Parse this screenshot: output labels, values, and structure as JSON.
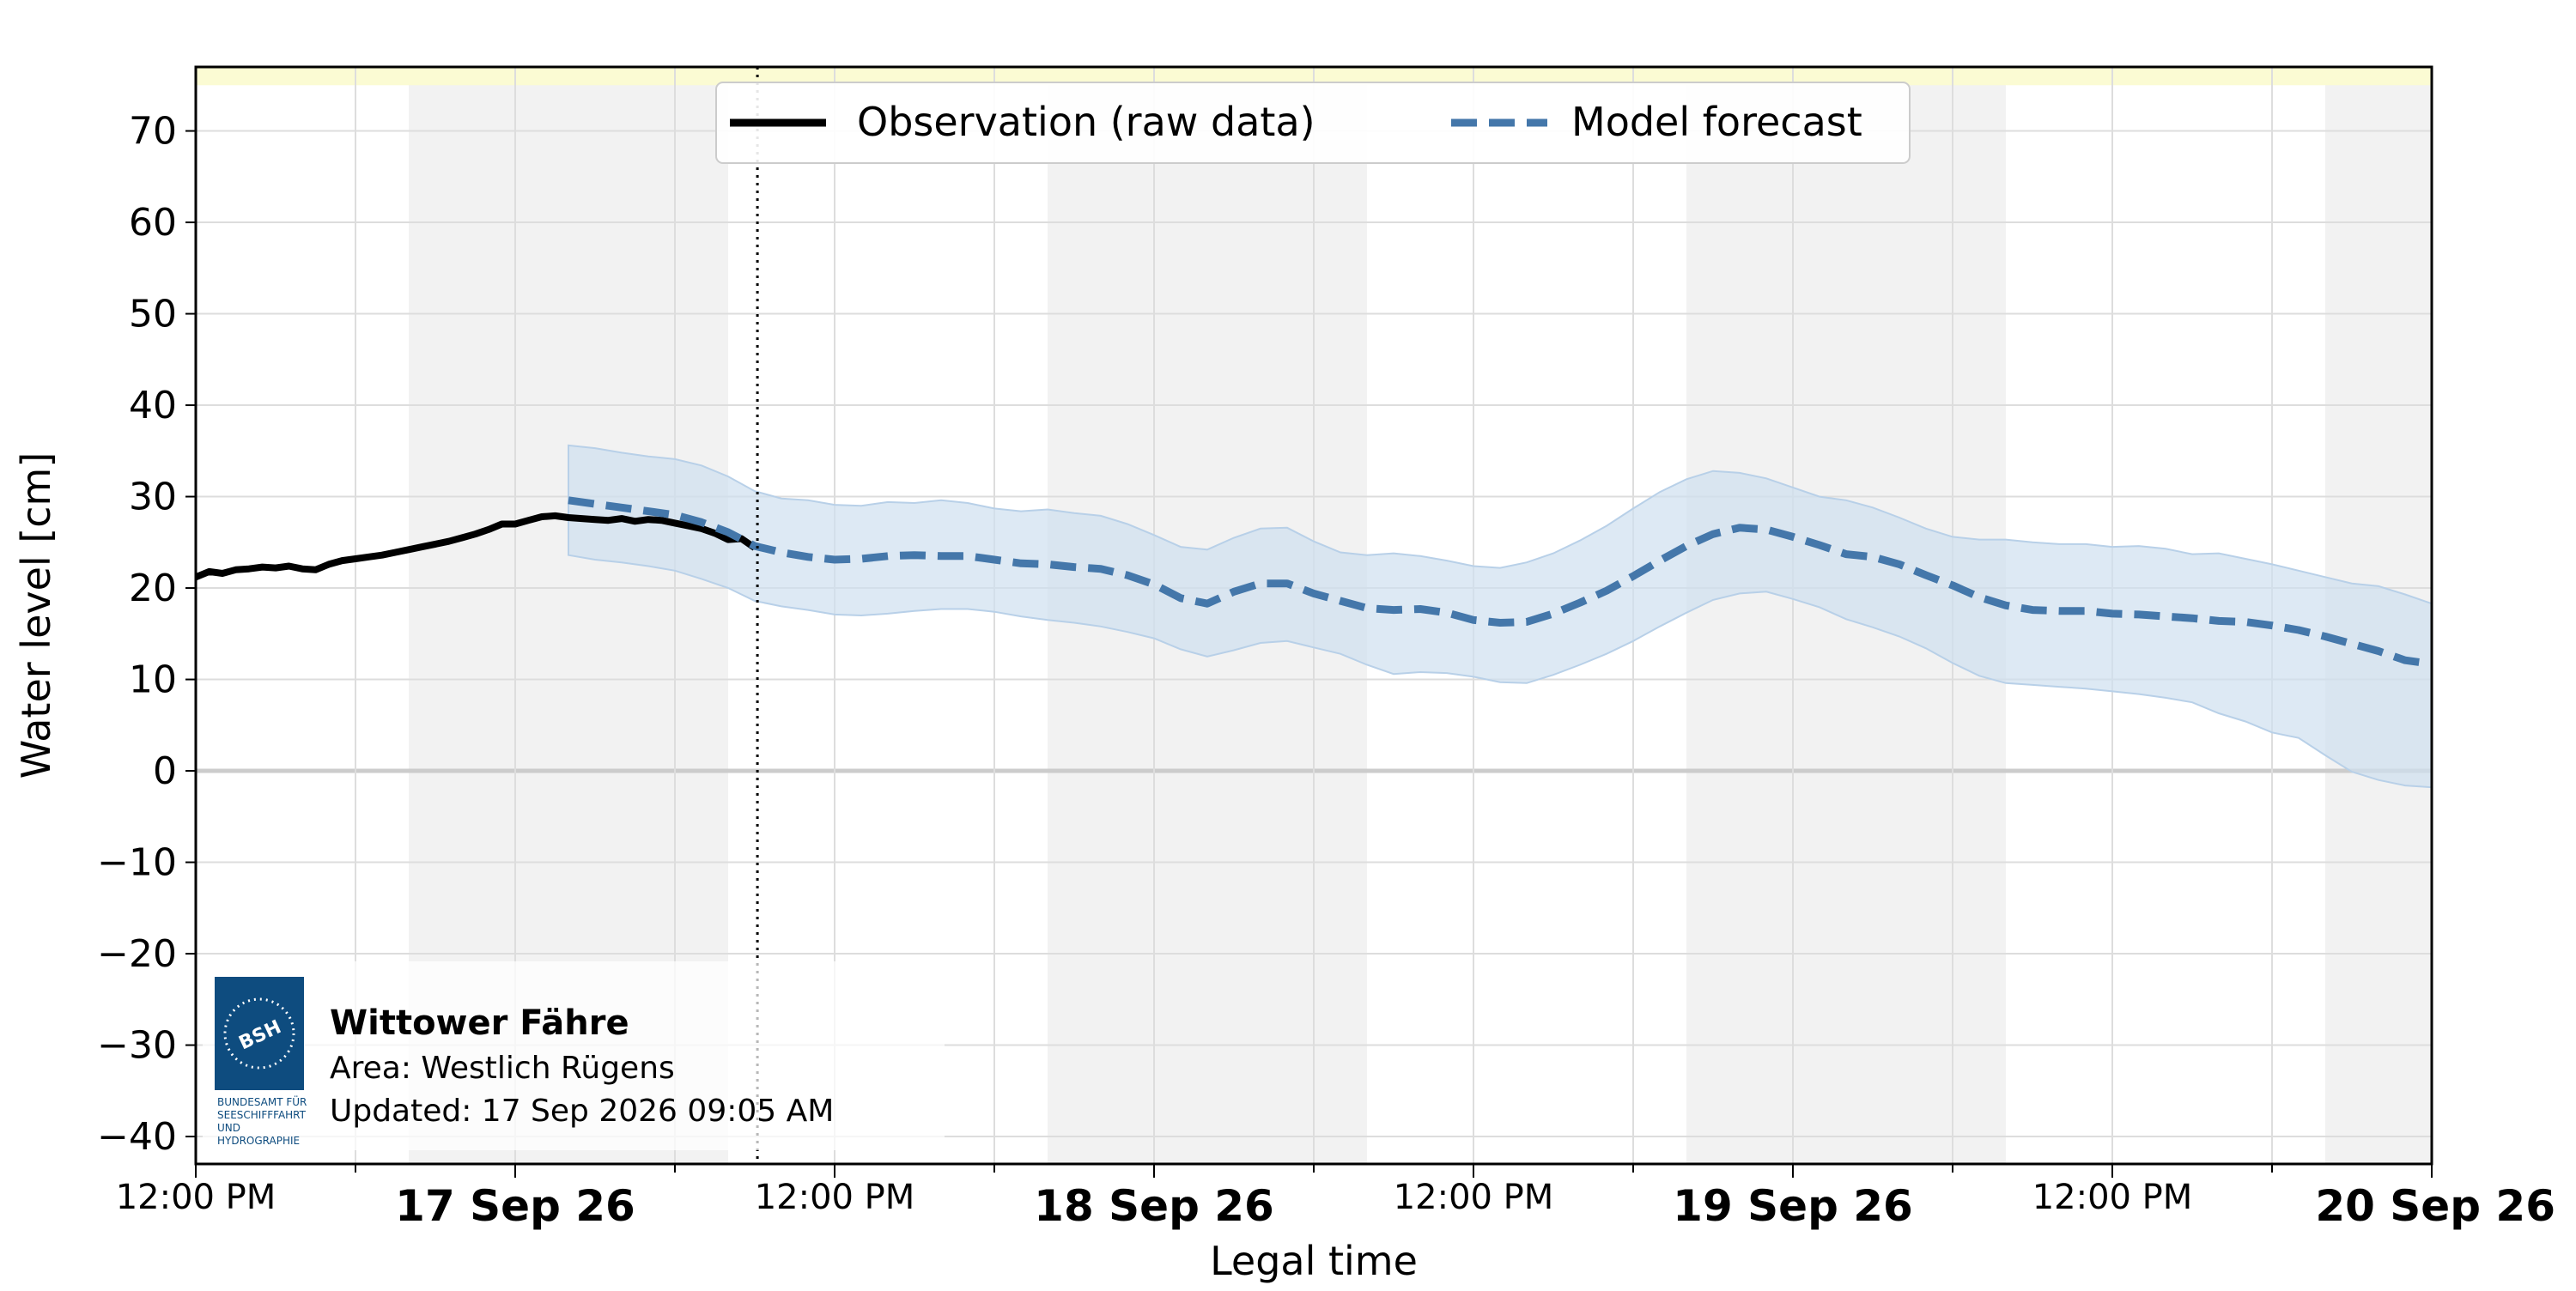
{
  "chart_data": {
    "type": "line",
    "xlabel": "Legal time",
    "ylabel": "Water level [cm]",
    "x_unit": "hours since 16 Sep 2026 12:00 PM",
    "xlim": [
      0,
      84
    ],
    "ylim": [
      -43,
      77
    ],
    "yticks": [
      -40,
      -30,
      -20,
      -10,
      0,
      10,
      20,
      30,
      40,
      50,
      60,
      70
    ],
    "x_tick_labels": [
      {
        "x": 0,
        "label": "12:00 PM",
        "bold": false
      },
      {
        "x": 12,
        "label": "17 Sep 26",
        "bold": true
      },
      {
        "x": 24,
        "label": "12:00 PM",
        "bold": false
      },
      {
        "x": 36,
        "label": "18 Sep 26",
        "bold": true
      },
      {
        "x": 48,
        "label": "12:00 PM",
        "bold": false
      },
      {
        "x": 60,
        "label": "19 Sep 26",
        "bold": true
      },
      {
        "x": 72,
        "label": "12:00 PM",
        "bold": false
      },
      {
        "x": 84,
        "label": "20 Sep 26",
        "bold": true
      }
    ],
    "x_gridlines": [
      6,
      12,
      18,
      24,
      30,
      36,
      42,
      48,
      54,
      60,
      66,
      72,
      78,
      84
    ],
    "grid": true,
    "night_bands": [
      [
        8,
        20
      ],
      [
        32,
        44
      ],
      [
        56,
        68
      ],
      [
        80,
        84
      ]
    ],
    "warning_band": [
      75,
      77
    ],
    "now_x": 21.1,
    "legend": {
      "placement": "top-center",
      "entries": [
        "Observation (raw data)",
        "Model forecast"
      ]
    },
    "series": [
      {
        "name": "Observation (raw data)",
        "style": "solid",
        "color": "#000000",
        "x": [
          0,
          0.5,
          1,
          1.5,
          2,
          2.5,
          3,
          3.5,
          4,
          4.5,
          5,
          5.5,
          6,
          6.5,
          7,
          7.5,
          8,
          8.5,
          9,
          9.5,
          10,
          10.5,
          11,
          11.5,
          12,
          12.5,
          13,
          13.5,
          14,
          14.5,
          15,
          15.5,
          16,
          16.5,
          17,
          17.5,
          18,
          18.5,
          19,
          19.5,
          20,
          20.5,
          21
        ],
        "y": [
          21.2,
          21.8,
          21.6,
          22.0,
          22.1,
          22.3,
          22.2,
          22.4,
          22.1,
          22.0,
          22.6,
          23.0,
          23.2,
          23.4,
          23.6,
          23.9,
          24.2,
          24.5,
          24.8,
          25.1,
          25.5,
          25.9,
          26.4,
          27.0,
          27.0,
          27.4,
          27.8,
          27.9,
          27.7,
          27.6,
          27.5,
          27.4,
          27.6,
          27.3,
          27.5,
          27.4,
          27.1,
          26.8,
          26.5,
          26.0,
          25.3,
          25.4,
          24.4
        ]
      },
      {
        "name": "Model forecast",
        "style": "dashed",
        "color": "#4477aa",
        "x": [
          14,
          15,
          16,
          17,
          18,
          19,
          20,
          21,
          22,
          23,
          24,
          25,
          26,
          27,
          28,
          29,
          30,
          31,
          32,
          33,
          34,
          35,
          36,
          37,
          38,
          39,
          40,
          41,
          42,
          43,
          44,
          45,
          46,
          47,
          48,
          49,
          50,
          51,
          52,
          53,
          54,
          55,
          56,
          57,
          58,
          59,
          60,
          61,
          62,
          63,
          64,
          65,
          66,
          67,
          68,
          69,
          70,
          71,
          72,
          73,
          74,
          75,
          76,
          77,
          78,
          79,
          80,
          81,
          82,
          83,
          84
        ],
        "y": [
          29.6,
          29.2,
          28.8,
          28.4,
          28.0,
          27.2,
          26.1,
          24.6,
          23.9,
          23.4,
          23.1,
          23.2,
          23.5,
          23.6,
          23.5,
          23.5,
          23.1,
          22.7,
          22.6,
          22.3,
          22.1,
          21.4,
          20.4,
          18.9,
          18.3,
          19.6,
          20.5,
          20.5,
          19.4,
          18.6,
          17.8,
          17.6,
          17.7,
          17.3,
          16.5,
          16.2,
          16.3,
          17.2,
          18.4,
          19.7,
          21.3,
          23.0,
          24.6,
          25.9,
          26.6,
          26.4,
          25.6,
          24.7,
          23.7,
          23.4,
          22.6,
          21.4,
          20.3,
          19.0,
          18.1,
          17.6,
          17.5,
          17.5,
          17.2,
          17.1,
          16.9,
          16.7,
          16.4,
          16.3,
          15.9,
          15.4,
          14.7,
          13.9,
          13.1,
          12.1,
          11.7
        ],
        "band_upper": [
          35.6,
          35.3,
          34.8,
          34.4,
          34.1,
          33.4,
          32.2,
          30.6,
          29.8,
          29.6,
          29.1,
          29.0,
          29.4,
          29.3,
          29.6,
          29.3,
          28.7,
          28.4,
          28.6,
          28.2,
          27.9,
          27.0,
          25.8,
          24.5,
          24.2,
          25.5,
          26.5,
          26.6,
          25.1,
          23.9,
          23.6,
          23.8,
          23.5,
          23.0,
          22.4,
          22.2,
          22.8,
          23.8,
          25.2,
          26.8,
          28.7,
          30.5,
          31.9,
          32.8,
          32.6,
          32.0,
          31.0,
          30.0,
          29.6,
          28.8,
          27.7,
          26.5,
          25.6,
          25.3,
          25.3,
          25.0,
          24.8,
          24.8,
          24.5,
          24.6,
          24.3,
          23.7,
          23.8,
          23.2,
          22.6,
          21.9,
          21.2,
          20.5,
          20.2,
          19.3,
          18.3
        ],
        "band_lower": [
          23.6,
          23.1,
          22.8,
          22.4,
          21.9,
          21.0,
          20.0,
          18.6,
          18.0,
          17.6,
          17.1,
          17.0,
          17.2,
          17.5,
          17.7,
          17.7,
          17.4,
          16.9,
          16.5,
          16.2,
          15.8,
          15.2,
          14.5,
          13.3,
          12.5,
          13.2,
          14.0,
          14.2,
          13.5,
          12.8,
          11.6,
          10.6,
          10.8,
          10.7,
          10.3,
          9.7,
          9.6,
          10.5,
          11.6,
          12.8,
          14.2,
          15.8,
          17.3,
          18.7,
          19.4,
          19.6,
          18.8,
          17.9,
          16.6,
          15.7,
          14.7,
          13.4,
          11.8,
          10.4,
          9.6,
          9.4,
          9.2,
          9.0,
          8.7,
          8.4,
          8.0,
          7.5,
          6.3,
          5.4,
          4.2,
          3.6,
          1.7,
          -0.1,
          -1.0,
          -1.6,
          -1.8
        ]
      }
    ]
  },
  "info_box": {
    "logo_text": "BSH",
    "logo_caption": [
      "BUNDESAMT FÜR",
      "SEESCHIFFFAHRT",
      "UND",
      "HYDROGRAPHIE"
    ],
    "station": "Wittower Fähre",
    "area": "Area: Westlich Rügens",
    "updated": "Updated: 17 Sep 2026 09:05 AM"
  },
  "colors": {
    "observation": "#000000",
    "forecast": "#4477aa",
    "forecast_band": "#cfe0f0",
    "night_band": "#f2f2f2",
    "warning_band": "#fbfbd3",
    "grid": "#dddddd",
    "zero_line": "#cccccc",
    "logo_blue": "#0e4c7f"
  }
}
